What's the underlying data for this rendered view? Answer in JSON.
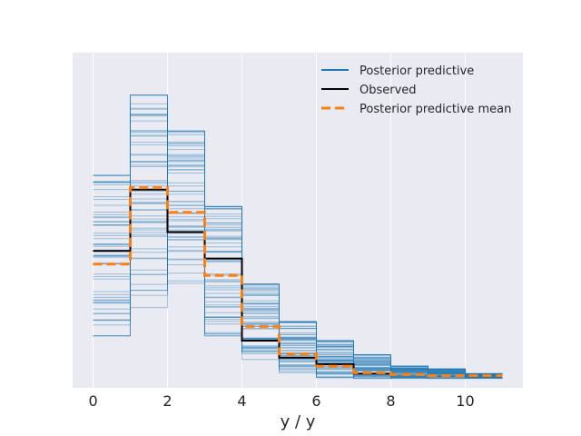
{
  "chart_data": {
    "type": "line",
    "title": "",
    "xlabel": "y / y",
    "ylabel": "",
    "xlim": [
      -0.55,
      11.55
    ],
    "ylim": [
      -0.01,
      0.345
    ],
    "xticks": [
      0,
      2,
      4,
      6,
      8,
      10
    ],
    "xtick_labels": [
      "0",
      "2",
      "4",
      "6",
      "8",
      "10"
    ],
    "yticks_shown": false,
    "grid": true,
    "legend_position": "top-right",
    "legend": [
      {
        "label": "Posterior predictive",
        "color": "#1f77b4",
        "style": "solid"
      },
      {
        "label": "Observed",
        "color": "#000000",
        "style": "solid"
      },
      {
        "label": "Posterior predictive mean",
        "color": "#ff7f0e",
        "style": "dashed"
      }
    ],
    "bin_edges": [
      0,
      1,
      2,
      3,
      4,
      5,
      6,
      7,
      8,
      9,
      10,
      11
    ],
    "series": [
      {
        "name": "Observed",
        "color": "#000000",
        "step_edges": [
          0,
          1,
          2,
          3,
          4,
          5,
          6,
          7,
          8
        ],
        "values": [
          0.135,
          0.2,
          0.155,
          0.127,
          0.04,
          0.022,
          0.015,
          0.005
        ]
      },
      {
        "name": "Posterior predictive mean",
        "color": "#ff7f0e",
        "step_edges": [
          0,
          1,
          2,
          3,
          4,
          5,
          6,
          7,
          8,
          9,
          10,
          11
        ],
        "values": [
          0.121,
          0.202,
          0.176,
          0.109,
          0.055,
          0.026,
          0.013,
          0.006,
          0.004,
          0.003,
          0.003
        ]
      }
    ],
    "posterior_predictive_ranges": [
      {
        "bin": [
          0,
          1
        ],
        "min": 0.045,
        "max": 0.215
      },
      {
        "bin": [
          1,
          2
        ],
        "min": 0.075,
        "max": 0.3
      },
      {
        "bin": [
          2,
          3
        ],
        "min": 0.1,
        "max": 0.262
      },
      {
        "bin": [
          3,
          4
        ],
        "min": 0.045,
        "max": 0.182
      },
      {
        "bin": [
          4,
          5
        ],
        "min": 0.02,
        "max": 0.1
      },
      {
        "bin": [
          5,
          6
        ],
        "min": 0.006,
        "max": 0.06
      },
      {
        "bin": [
          6,
          7
        ],
        "min": 0.001,
        "max": 0.04
      },
      {
        "bin": [
          7,
          8
        ],
        "min": 0.0,
        "max": 0.025
      },
      {
        "bin": [
          8,
          9
        ],
        "min": 0.0,
        "max": 0.013
      },
      {
        "bin": [
          9,
          10
        ],
        "min": 0.0,
        "max": 0.01
      },
      {
        "bin": [
          10,
          11
        ],
        "min": 0.0,
        "max": 0.005
      }
    ],
    "posterior_predictive_draws": 60
  }
}
